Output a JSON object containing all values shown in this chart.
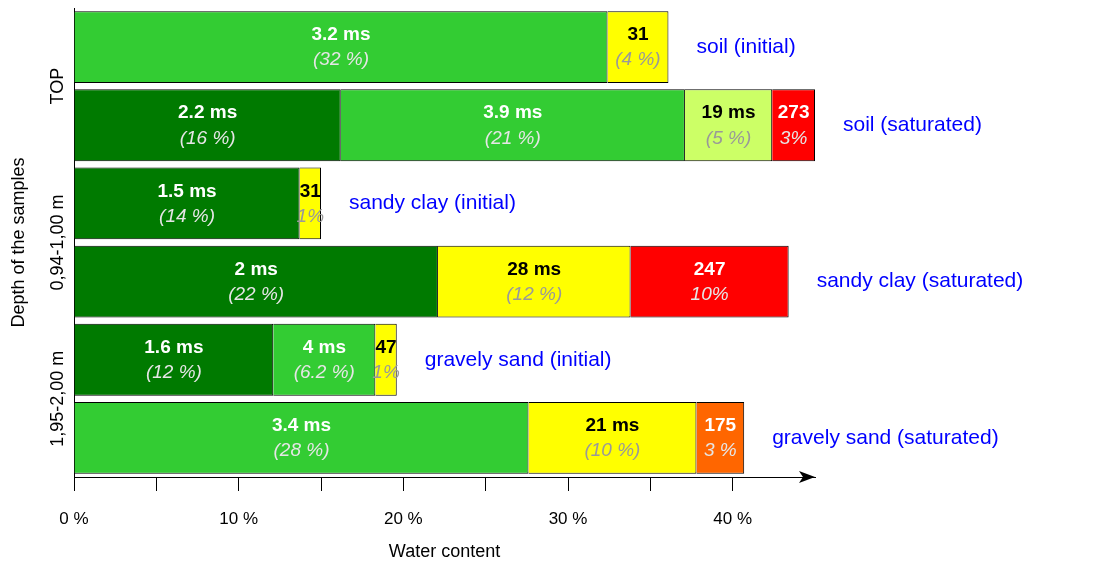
{
  "chart_data": {
    "type": "bar",
    "orientation": "horizontal",
    "stacked": true,
    "xlabel": "Water content",
    "ylabel": "Depth of the samples",
    "categories": [
      "TOP",
      null,
      "0,94-1,00 m",
      null,
      "1,95-2,00 m",
      null
    ],
    "xlim": [
      0,
      45
    ],
    "xticks": [
      {
        "value": 0,
        "label": "0 %"
      },
      {
        "value": 5,
        "label": null
      },
      {
        "value": 10,
        "label": "10 %"
      },
      {
        "value": 15,
        "label": null
      },
      {
        "value": 20,
        "label": "20 %"
      },
      {
        "value": 25,
        "label": null
      },
      {
        "value": 30,
        "label": "30 %"
      },
      {
        "value": 35,
        "label": null
      },
      {
        "value": 40,
        "label": "40 %"
      }
    ],
    "grid": false,
    "legend": false,
    "series": [
      {
        "color": "#007a00",
        "values": [
          null,
          16.2,
          13.7,
          22.1,
          12.1,
          null
        ],
        "value_labels": [
          null,
          "2.2 ms\n(16 %)",
          "1.5 ms\n(14 %)",
          "2 ms\n(22 %)",
          "1.6 ms\n(12 %)",
          null
        ]
      },
      {
        "color": "#33cc33",
        "values": [
          32.4,
          20.9,
          null,
          null,
          6.2,
          27.6
        ],
        "value_labels": [
          "3.2 ms\n(32 %)",
          "3.9 ms\n(21 %)",
          null,
          null,
          "4 ms\n(6.2 %)",
          "3.4 ms\n(28 %)"
        ]
      },
      {
        "color": "#ccff66",
        "values": [
          null,
          5.3,
          null,
          null,
          null,
          null
        ],
        "value_labels": [
          null,
          "19 ms\n(5 %)",
          null,
          null,
          null,
          null
        ]
      },
      {
        "color": "#ffff00",
        "values": [
          3.7,
          null,
          1.3,
          11.7,
          1.3,
          10.2
        ],
        "value_labels": [
          "31\n(4 %)",
          null,
          "31\n1%",
          "28 ms\n(12 %)",
          "47\n1%",
          "21 ms\n(10 %)"
        ]
      },
      {
        "color": "#ff0000",
        "values": [
          null,
          2.6,
          null,
          9.6,
          null,
          null
        ],
        "value_labels": [
          null,
          "273\n3%",
          null,
          "247\n10%",
          null,
          null
        ]
      },
      {
        "color": "#ff6600",
        "values": [
          null,
          null,
          null,
          null,
          null,
          2.9
        ],
        "value_labels": [
          null,
          null,
          null,
          null,
          null,
          "175\n3 %"
        ]
      }
    ],
    "annotations": [
      "soil (initial)",
      "soil (saturated)",
      "sandy clay (initial)",
      "sandy clay (saturated)",
      "gravely sand (initial)",
      "gravely sand (saturated)"
    ]
  }
}
